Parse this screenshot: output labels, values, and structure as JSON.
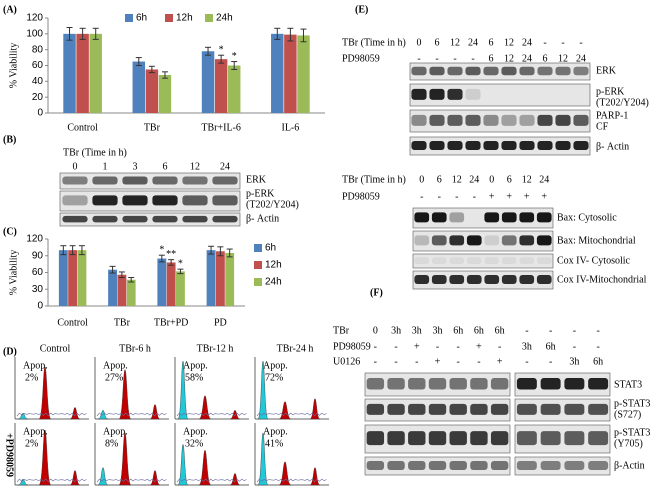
{
  "chart_data": [
    {
      "type": "bar",
      "label": "(A)",
      "y_label": "% Viability",
      "categories": [
        "Control",
        "TBr",
        "TBr+IL-6",
        "IL-6"
      ],
      "series": [
        {
          "name": "6h",
          "color": "#4f81bd",
          "values": [
            100,
            65,
            78,
            100
          ],
          "errors": [
            8,
            5,
            5,
            7
          ]
        },
        {
          "name": "12h",
          "color": "#c0504d",
          "values": [
            100,
            55,
            68,
            99
          ],
          "errors": [
            7,
            4,
            5,
            8
          ]
        },
        {
          "name": "24h",
          "color": "#9bbb59",
          "values": [
            100,
            48,
            60,
            98
          ],
          "errors": [
            7,
            4,
            5,
            8
          ]
        }
      ],
      "ylim": [
        0,
        120
      ],
      "yticks": [
        0,
        20,
        40,
        60,
        80,
        100,
        120
      ],
      "legend_position": "top",
      "annotations": [
        {
          "text": "*",
          "series": 1,
          "category": 2
        },
        {
          "text": "*",
          "series": 2,
          "category": 2
        }
      ]
    },
    {
      "type": "bar",
      "label": "(C)",
      "y_label": "% Viability",
      "categories": [
        "Control",
        "TBr",
        "TBr+PD",
        "PD"
      ],
      "series": [
        {
          "name": "6h",
          "color": "#4f81bd",
          "values": [
            100,
            65,
            85,
            100
          ],
          "errors": [
            8,
            6,
            6,
            7
          ]
        },
        {
          "name": "12h",
          "color": "#c0504d",
          "values": [
            100,
            56,
            78,
            98
          ],
          "errors": [
            8,
            5,
            5,
            8
          ]
        },
        {
          "name": "24h",
          "color": "#9bbb59",
          "values": [
            100,
            47,
            62,
            95
          ],
          "errors": [
            8,
            4,
            4,
            7
          ]
        }
      ],
      "ylim": [
        0,
        120
      ],
      "yticks": [
        0,
        30,
        60,
        90,
        120
      ],
      "legend_position": "right",
      "annotations": [
        {
          "text": "*",
          "series": 0,
          "category": 2
        },
        {
          "text": "**",
          "series": 1,
          "category": 2
        },
        {
          "text": "*",
          "series": 2,
          "category": 2
        }
      ]
    }
  ],
  "blot_B": {
    "label": "(B)",
    "conditions": [
      {
        "name": "TBr (Time  in h)",
        "lanes": [
          "0",
          "1",
          "3",
          "6",
          "12",
          "24"
        ]
      }
    ],
    "rows": [
      [
        "ERK"
      ],
      [
        "p-ERK",
        "(T202/Y204)"
      ],
      [
        "β- Actin"
      ]
    ]
  },
  "flow_D": {
    "label": "(D)",
    "columns": [
      "Control",
      "TBr-6 h",
      "TBr-12 h",
      "TBr-24 h"
    ],
    "row_label": "+PD98059",
    "apop_label": "Apop.",
    "apoptosis": [
      [
        "2%",
        "27%",
        "58%",
        "72%"
      ],
      [
        "2%",
        "8%",
        "32%",
        "41%"
      ]
    ]
  },
  "blot_E": {
    "label": "(E)",
    "top": {
      "conditions": [
        {
          "name": "TBr (Time in h)",
          "lanes": [
            "0",
            "6",
            "12",
            "24",
            "6",
            "12",
            "24",
            "-",
            "-",
            "-"
          ]
        },
        {
          "name": "PD98059",
          "lanes": [
            "-",
            "-",
            "-",
            "-",
            "6",
            "12",
            "24",
            "6",
            "12",
            "24"
          ]
        }
      ],
      "rows": [
        [
          "ERK"
        ],
        [
          "p-ERK",
          "(T202/Y204)"
        ],
        [
          "PARP-1",
          "CF"
        ],
        [
          "β- Actin"
        ]
      ]
    },
    "bottom": {
      "conditions": [
        {
          "name": "TBr (Time in h)",
          "lanes": [
            "0",
            "6",
            "12",
            "24",
            "0",
            "6",
            "12",
            "24"
          ]
        },
        {
          "name": "PD98059",
          "lanes": [
            "-",
            "-",
            "-",
            "-",
            "+",
            "+",
            "+",
            "+"
          ]
        }
      ],
      "rows": [
        [
          "Bax: Cytosolic"
        ],
        [
          "Bax: Mitochondrial"
        ],
        [
          "Cox IV- Cytosolic"
        ],
        [
          "Cox IV-Mitochondrial"
        ]
      ]
    }
  },
  "blot_F": {
    "label": "(F)",
    "conditions": [
      {
        "name": "TBr",
        "lanes": [
          "0",
          "3h",
          "3h",
          "3h",
          "6h",
          "6h",
          "6h",
          "-",
          "-",
          "-",
          "-"
        ]
      },
      {
        "name": "PD98059",
        "lanes": [
          "-",
          "-",
          "+",
          "-",
          "-",
          "+",
          "-",
          "3h",
          "6h",
          "-",
          "-"
        ]
      },
      {
        "name": "U0126",
        "lanes": [
          "-",
          "-",
          "-",
          "+",
          "-",
          "-",
          "+",
          "-",
          "-",
          "3h",
          "6h"
        ]
      }
    ],
    "rows": [
      [
        "STAT3"
      ],
      [
        "p-STAT3",
        "(S727)"
      ],
      [
        "p-STAT3",
        "(Y705)"
      ],
      [
        "β-Actin"
      ]
    ]
  }
}
